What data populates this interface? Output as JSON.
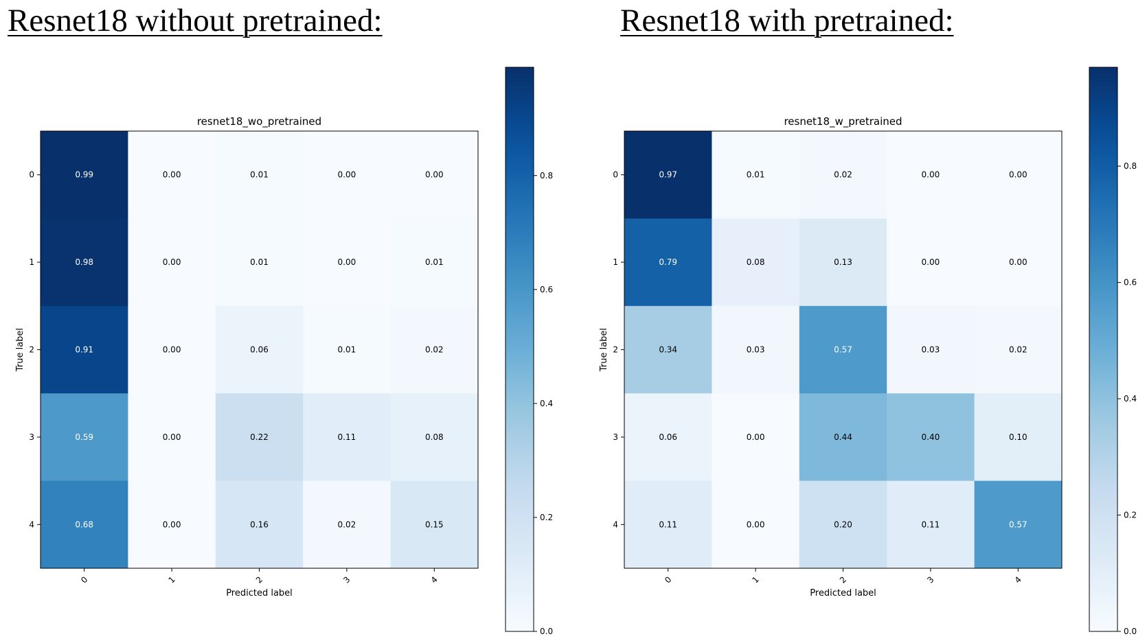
{
  "headings": {
    "left": "Resnet18 without pretrained:",
    "right": "Resnet18 with pretrained:"
  },
  "chart_data": [
    {
      "type": "heatmap",
      "title": "resnet18_wo_pretrained",
      "xlabel": "Predicted label",
      "ylabel": "True label",
      "x_ticks": [
        "0",
        "1",
        "2",
        "3",
        "4"
      ],
      "y_ticks": [
        "0",
        "1",
        "2",
        "3",
        "4"
      ],
      "values": [
        [
          0.99,
          0.0,
          0.01,
          0.0,
          0.0
        ],
        [
          0.98,
          0.0,
          0.01,
          0.0,
          0.01
        ],
        [
          0.91,
          0.0,
          0.06,
          0.01,
          0.02
        ],
        [
          0.59,
          0.0,
          0.22,
          0.11,
          0.08
        ],
        [
          0.68,
          0.0,
          0.16,
          0.02,
          0.15
        ]
      ],
      "colormap": "Blues",
      "colorbar": {
        "vmin": 0.0,
        "vmax": 0.99,
        "ticks": [
          0.0,
          0.2,
          0.4,
          0.6,
          0.8
        ],
        "tick_labels": [
          "0.0",
          "0.2",
          "0.4",
          "0.6",
          "0.8"
        ]
      }
    },
    {
      "type": "heatmap",
      "title": "resnet18_w_pretrained",
      "xlabel": "Predicted label",
      "ylabel": "True label",
      "x_ticks": [
        "0",
        "1",
        "2",
        "3",
        "4"
      ],
      "y_ticks": [
        "0",
        "1",
        "2",
        "3",
        "4"
      ],
      "values": [
        [
          0.97,
          0.01,
          0.02,
          0.0,
          0.0
        ],
        [
          0.79,
          0.08,
          0.13,
          0.0,
          0.0
        ],
        [
          0.34,
          0.03,
          0.57,
          0.03,
          0.02
        ],
        [
          0.06,
          0.0,
          0.44,
          0.4,
          0.1
        ],
        [
          0.11,
          0.0,
          0.2,
          0.11,
          0.57
        ]
      ],
      "colormap": "Blues",
      "colorbar": {
        "vmin": 0.0,
        "vmax": 0.97,
        "ticks": [
          0.0,
          0.2,
          0.4,
          0.6,
          0.8
        ],
        "tick_labels": [
          "0.0",
          "0.2",
          "0.4",
          "0.6",
          "0.8"
        ]
      }
    }
  ]
}
